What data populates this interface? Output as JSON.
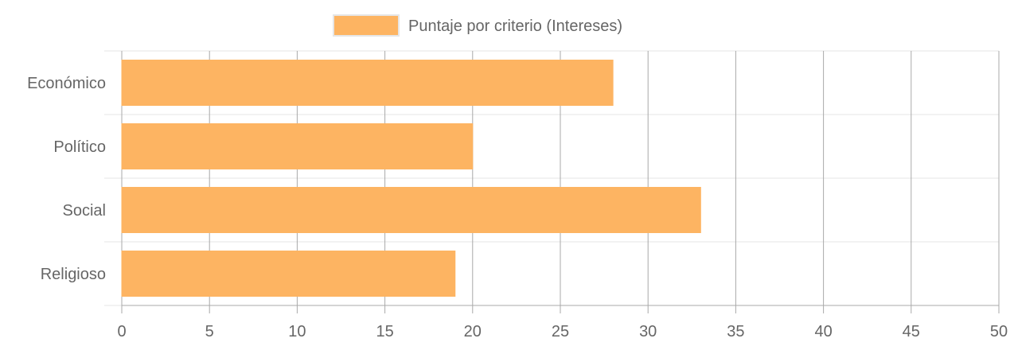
{
  "chart_data": {
    "type": "bar",
    "orientation": "horizontal",
    "categories": [
      "Económico",
      "Político",
      "Social",
      "Religioso"
    ],
    "series": [
      {
        "name": "Puntaje por criterio (Intereses)",
        "values": [
          28,
          20,
          33,
          19
        ]
      }
    ],
    "xlim": [
      0,
      50
    ],
    "x_ticks": [
      0,
      5,
      10,
      15,
      20,
      25,
      30,
      35,
      40,
      45,
      50
    ],
    "grid": true,
    "legend_position": "top-center",
    "colors": {
      "bar_fill": "#fdb462",
      "bar_stroke": "#fdb462",
      "grid": "#e5e5e5",
      "vgrid": "#a9a9a9",
      "text": "#666666"
    }
  }
}
